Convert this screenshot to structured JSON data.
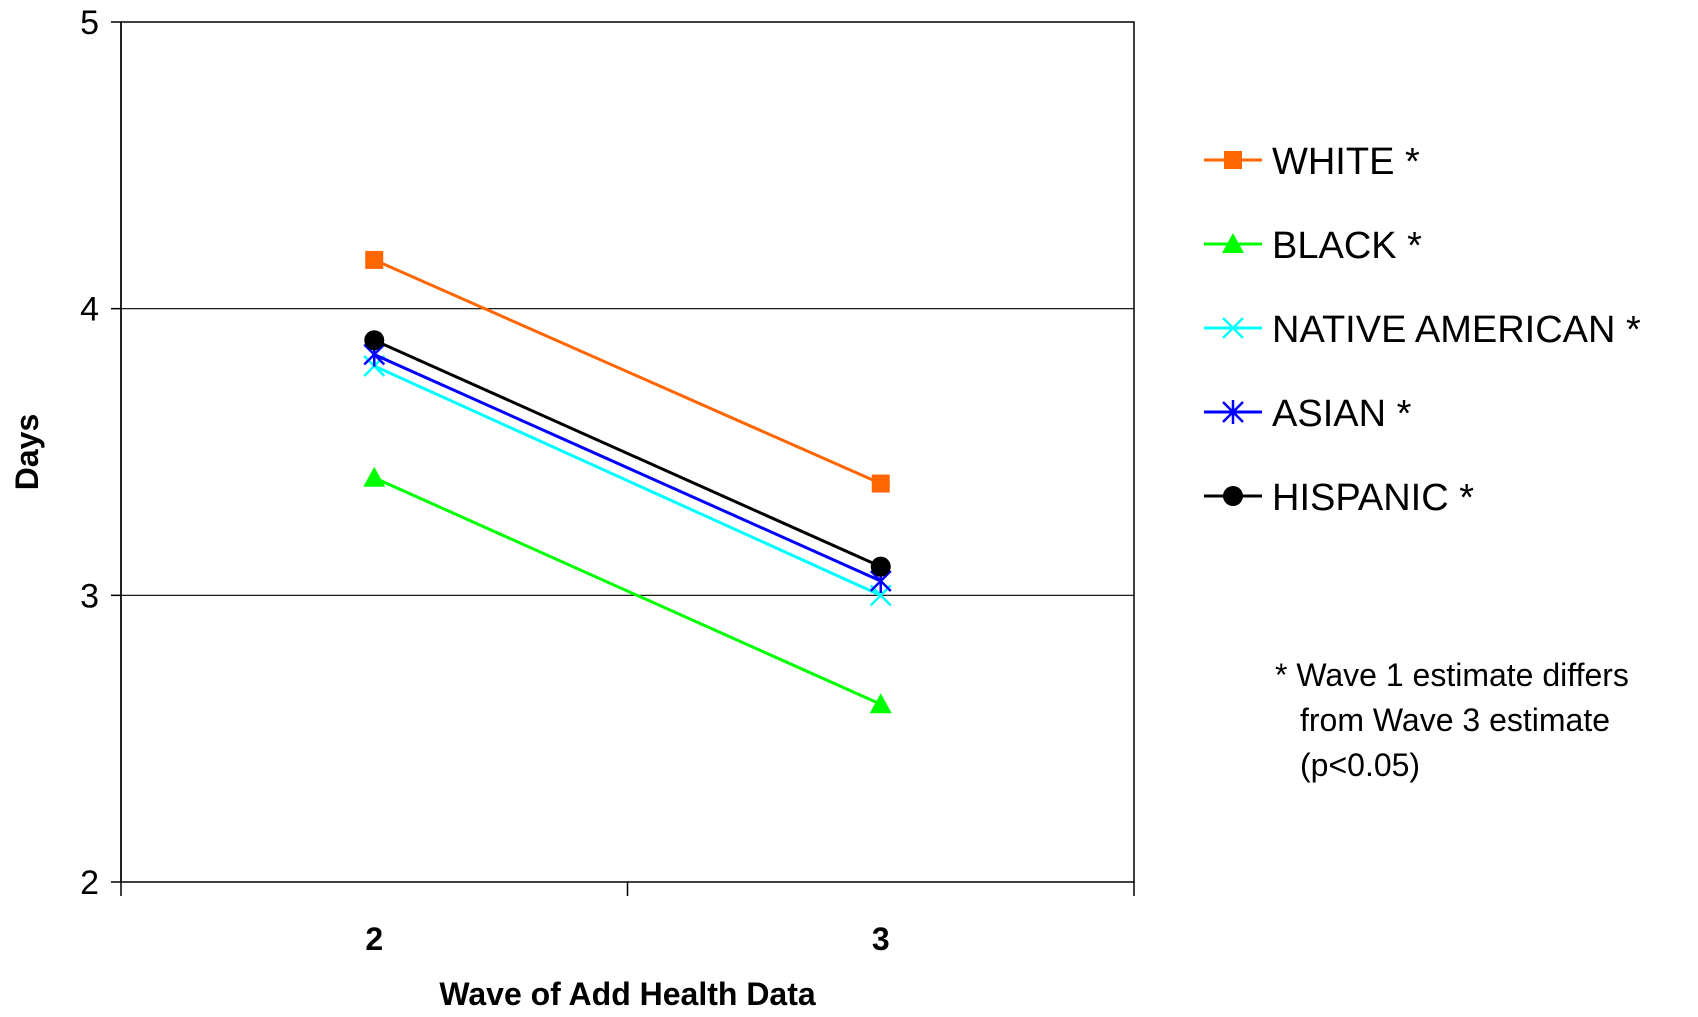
{
  "chart_data": {
    "type": "line",
    "x_categories": [
      "2",
      "3"
    ],
    "xlabel": "Wave of Add Health Data",
    "ylabel": "Days",
    "ylim": [
      2,
      5
    ],
    "y_ticks": [
      "2",
      "3",
      "4",
      "5"
    ],
    "grid": "horizontal major gridlines",
    "legend_position": "right",
    "series": [
      {
        "name": "WHITE *",
        "values": [
          4.17,
          3.39
        ],
        "color": "#FF6600",
        "marker": "square"
      },
      {
        "name": "BLACK *",
        "values": [
          3.41,
          2.62
        ],
        "color": "#00FF00",
        "marker": "triangle"
      },
      {
        "name": "NATIVE AMERICAN *",
        "values": [
          3.8,
          3.0
        ],
        "color": "#00FFFF",
        "marker": "x"
      },
      {
        "name": "ASIAN *",
        "values": [
          3.84,
          3.05
        ],
        "color": "#0000FF",
        "marker": "star"
      },
      {
        "name": "HISPANIC *",
        "values": [
          3.89,
          3.1
        ],
        "color": "#000000",
        "marker": "circle"
      }
    ],
    "annotation": {
      "lines": [
        "* Wave 1 estimate differs",
        "from Wave 3 estimate",
        "(p<0.05)"
      ]
    }
  }
}
